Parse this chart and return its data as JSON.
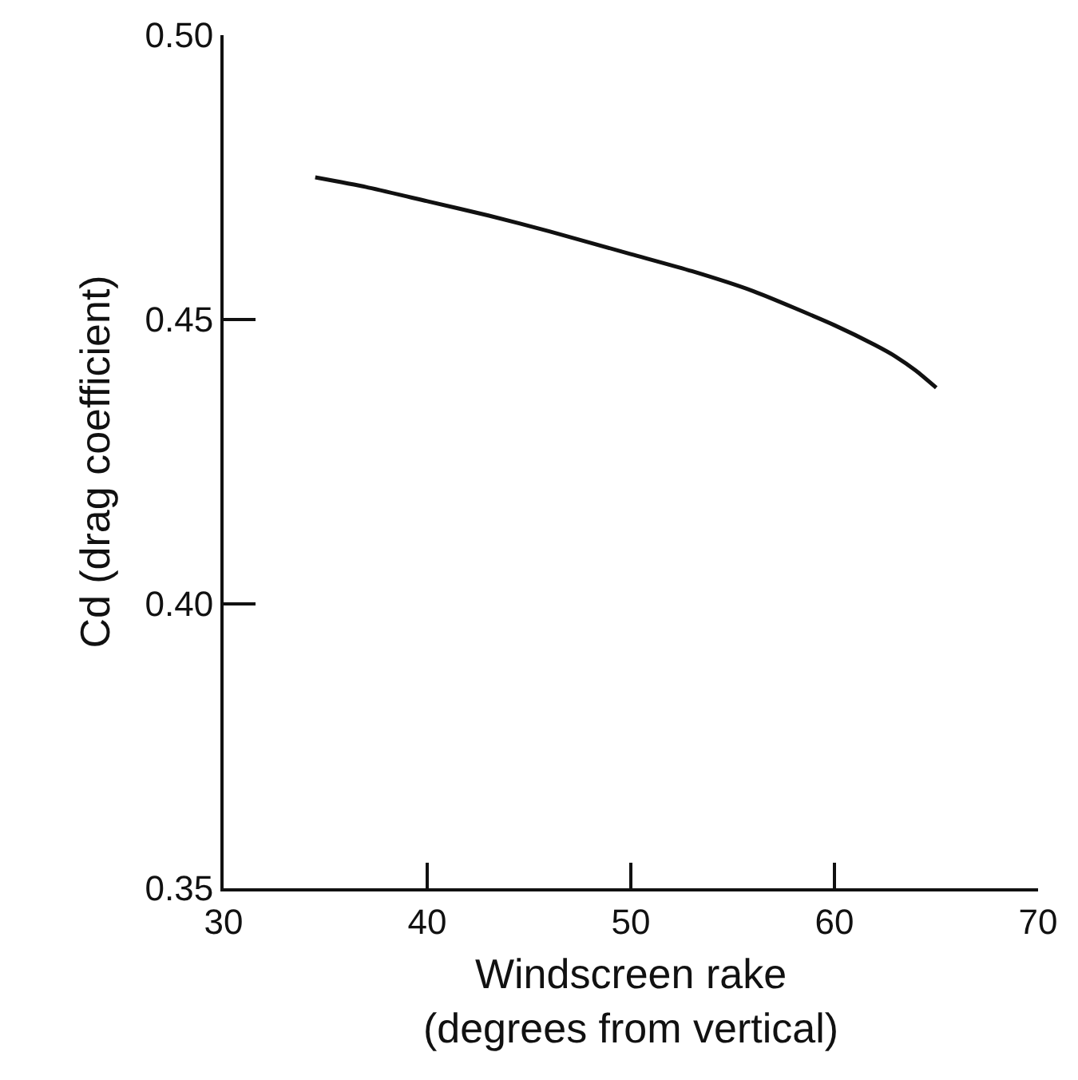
{
  "chart_data": {
    "type": "line",
    "xlabel": "Windscreen rake\n(degrees from vertical)",
    "ylabel": "Cd (drag coefficient)",
    "x": [
      34.5,
      37,
      40,
      43,
      46,
      50,
      53,
      56,
      60,
      62,
      63,
      64,
      65
    ],
    "series": [
      {
        "color": "#111111",
        "values": [
          0.475,
          0.4733,
          0.4708,
          0.4683,
          0.4655,
          0.4615,
          0.4585,
          0.455,
          0.449,
          0.4455,
          0.4435,
          0.441,
          0.438
        ]
      }
    ],
    "xlim": [
      30,
      70
    ],
    "xticks": [
      30,
      40,
      50,
      60,
      70
    ],
    "ylim": [
      0.35,
      0.5
    ],
    "yticks": [
      {
        "value": 0.35,
        "label": "0.35"
      },
      {
        "value": 0.4,
        "label": "0.40"
      },
      {
        "value": 0.45,
        "label": "0.45"
      },
      {
        "value": 0.5,
        "label": "0.50"
      }
    ],
    "grid": false,
    "marker": "none",
    "line_style": "solid"
  }
}
